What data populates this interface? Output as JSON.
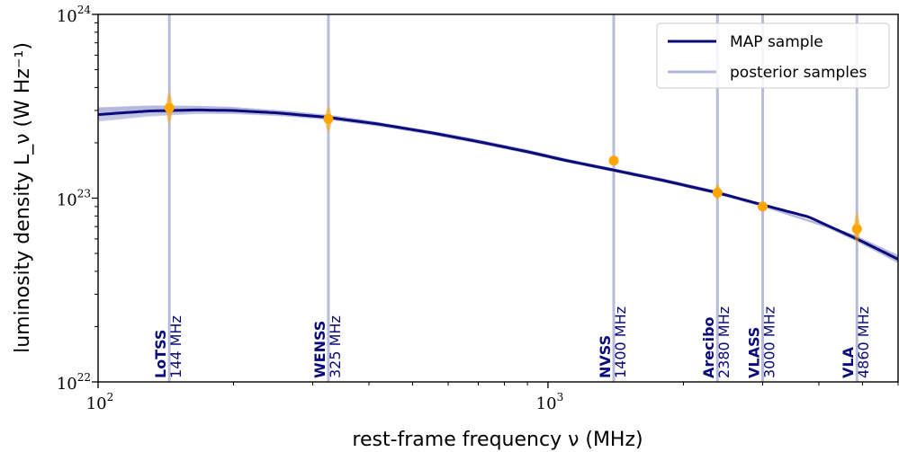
{
  "chart_data": {
    "type": "line",
    "xlabel": "rest-frame frequency ν (MHz)",
    "ylabel": "luminosity density L_ν (W Hz⁻¹)",
    "x_scale": "log",
    "y_scale": "log",
    "xlim": [
      100,
      6000
    ],
    "ylim": [
      1e+22,
      1e+24
    ],
    "x_tick_labels": [
      {
        "value": 100,
        "base": "10",
        "exp": "2"
      },
      {
        "value": 1000,
        "base": "10",
        "exp": "3"
      }
    ],
    "y_tick_labels": [
      {
        "value": 1e+22,
        "base": "10",
        "exp": "22"
      },
      {
        "value": 1e+23,
        "base": "10",
        "exp": "23"
      },
      {
        "value": 1e+24,
        "base": "10",
        "exp": "24"
      }
    ],
    "legend": {
      "position": "top-right",
      "entries": [
        "MAP sample",
        "posterior samples"
      ]
    },
    "colors": {
      "map": "#0a0a7a",
      "posterior": "#b4b8dc",
      "points": "#ffa500",
      "vline": "#b9bcd9",
      "instrument": "#0a0a7a"
    },
    "series": [
      {
        "name": "MAP sample",
        "x": [
          100,
          130,
          165,
          200,
          250,
          325,
          420,
          550,
          700,
          900,
          1100,
          1400,
          1800,
          2380,
          3000,
          3800,
          4860,
          6000
        ],
        "y": [
          2.85e+23,
          2.98e+23,
          3.02e+23,
          3e+23,
          2.91e+23,
          2.75e+23,
          2.53e+23,
          2.27e+23,
          2.03e+23,
          1.79e+23,
          1.6e+23,
          1.42e+23,
          1.25e+23,
          1.07e+23,
          9.2e+22,
          7.9e+22,
          6e+22,
          4.65e+22
        ]
      },
      {
        "name": "posterior samples",
        "x": [
          100,
          165,
          325,
          700,
          1400,
          2380,
          4860,
          6000
        ],
        "y_band_low": [
          2.55e+23,
          2.85e+23,
          2.68e+23,
          1.99e+23,
          1.4e+23,
          1.05e+23,
          5.8e+22,
          4.4e+22
        ],
        "y_band_high": [
          3.2e+23,
          3.2e+23,
          2.84e+23,
          2.08e+23,
          1.45e+23,
          1.09e+23,
          6.2e+22,
          4.95e+22
        ]
      }
    ],
    "observations": [
      {
        "name": "LoTSS",
        "freq_label": "144 MHz",
        "x": 144,
        "y": 3.1e+23,
        "y_low": 2.5e+23,
        "y_high": 3.8e+23
      },
      {
        "name": "WENSS",
        "freq_label": "325 MHz",
        "x": 325,
        "y": 2.7e+23,
        "y_low": 2.25e+23,
        "y_high": 3.2e+23
      },
      {
        "name": "NVSS",
        "freq_label": "1400 MHz",
        "x": 1400,
        "y": 1.6e+23,
        "y_low": 1.52e+23,
        "y_high": 1.68e+23
      },
      {
        "name": "Arecibo",
        "freq_label": "2380 MHz",
        "x": 2380,
        "y": 1.07e+23,
        "y_low": 9.7e+22,
        "y_high": 1.2e+23
      },
      {
        "name": "VLASS",
        "freq_label": "3000 MHz",
        "x": 3000,
        "y": 9e+22,
        "y_low": 8.6e+22,
        "y_high": 9.4e+22
      },
      {
        "name": "VLA",
        "freq_label": "4860 MHz",
        "x": 4860,
        "y": 6.8e+22,
        "y_low": 5.6e+22,
        "y_high": 8.4e+22
      }
    ]
  }
}
